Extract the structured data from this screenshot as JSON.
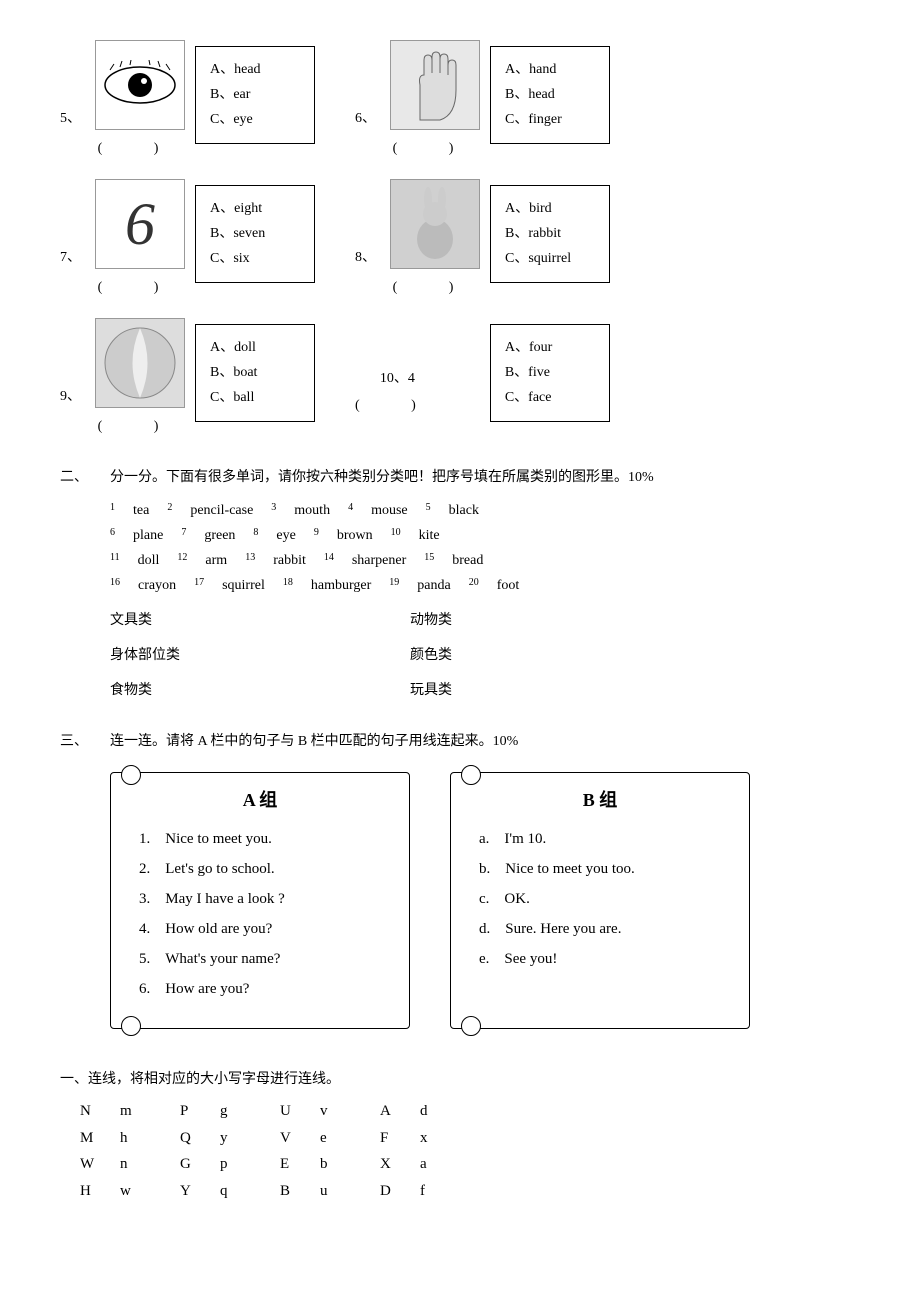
{
  "questions": {
    "q5": {
      "num": "5、",
      "img_label": "[eye]",
      "paren": "(  )",
      "opts": [
        "A、head",
        "B、ear",
        "C、eye"
      ]
    },
    "q6": {
      "num": "6、",
      "img_label": "[hand]",
      "paren": "(  )",
      "opts": [
        "A、hand",
        "B、head",
        "C、finger"
      ]
    },
    "q7": {
      "num": "7、",
      "img_label": "6",
      "paren": "(  )",
      "opts": [
        "A、eight",
        "B、seven",
        "C、six"
      ]
    },
    "q8": {
      "num": "8、",
      "img_label": "[rabbit]",
      "paren": "(  )",
      "opts": [
        "A、bird",
        "B、rabbit",
        "C、squirrel"
      ]
    },
    "q9": {
      "num": "9、",
      "img_label": "[ball]",
      "paren": "(  )",
      "opts": [
        "A、doll",
        "B、boat",
        "C、ball"
      ]
    },
    "q10": {
      "num": "10、",
      "text": "4",
      "paren": "(  )",
      "opts": [
        "A、four",
        "B、five",
        "C、face"
      ]
    }
  },
  "section2": {
    "num": "二、",
    "title": "分一分。下面有很多单词，请你按六种类别分类吧！把序号填在所属类别的图形里。10%",
    "rows": [
      [
        [
          "1",
          "tea"
        ],
        [
          "2",
          "pencil-case"
        ],
        [
          "3",
          "mouth"
        ],
        [
          "4",
          "mouse"
        ],
        [
          "5",
          "black"
        ]
      ],
      [
        [
          "6",
          "plane"
        ],
        [
          "7",
          "green"
        ],
        [
          "8",
          "eye"
        ],
        [
          "9",
          "brown"
        ],
        [
          "10",
          "kite"
        ]
      ],
      [
        [
          "11",
          "doll"
        ],
        [
          "12",
          "arm"
        ],
        [
          "13",
          "rabbit"
        ],
        [
          "14",
          "sharpener"
        ],
        [
          "15",
          "bread"
        ]
      ],
      [
        [
          "16",
          "crayon"
        ],
        [
          "17",
          "squirrel"
        ],
        [
          "18",
          "hamburger"
        ],
        [
          "19",
          "panda"
        ],
        [
          "20",
          "foot"
        ]
      ]
    ],
    "categories": [
      "文具类",
      "动物类",
      "身体部位类",
      "颜色类",
      "食物类",
      "玩具类"
    ]
  },
  "section3": {
    "num": "三、",
    "title": "连一连。请将 A 栏中的句子与 B 栏中匹配的句子用线连起来。10%",
    "groupA": {
      "title": "A 组",
      "items": [
        "1.　Nice to meet you.",
        "2.　Let's go to school.",
        "3.　May I have a look ?",
        "4.　How old are you?",
        "5.　What's your name?",
        "6.　How are you?"
      ]
    },
    "groupB": {
      "title": "B 组",
      "items": [
        "a.　I'm 10.",
        "b.　Nice to meet you too.",
        "c.　OK.",
        "d.　Sure. Here you are.",
        "e.　See you!"
      ]
    }
  },
  "section_letters": {
    "num": "一、",
    "title": "连线，将相对应的大小写字母进行连线。",
    "rows": [
      [
        [
          "N",
          "m"
        ],
        [
          "P",
          "g"
        ],
        [
          "U",
          "v"
        ],
        [
          "A",
          "d"
        ]
      ],
      [
        [
          "M",
          "h"
        ],
        [
          "Q",
          "y"
        ],
        [
          "V",
          "e"
        ],
        [
          "F",
          "x"
        ]
      ],
      [
        [
          "W",
          "n"
        ],
        [
          "G",
          "p"
        ],
        [
          "E",
          "b"
        ],
        [
          "X",
          "a"
        ]
      ],
      [
        [
          "H",
          "w"
        ],
        [
          "Y",
          "q"
        ],
        [
          "B",
          "u"
        ],
        [
          "D",
          "f"
        ]
      ]
    ]
  }
}
